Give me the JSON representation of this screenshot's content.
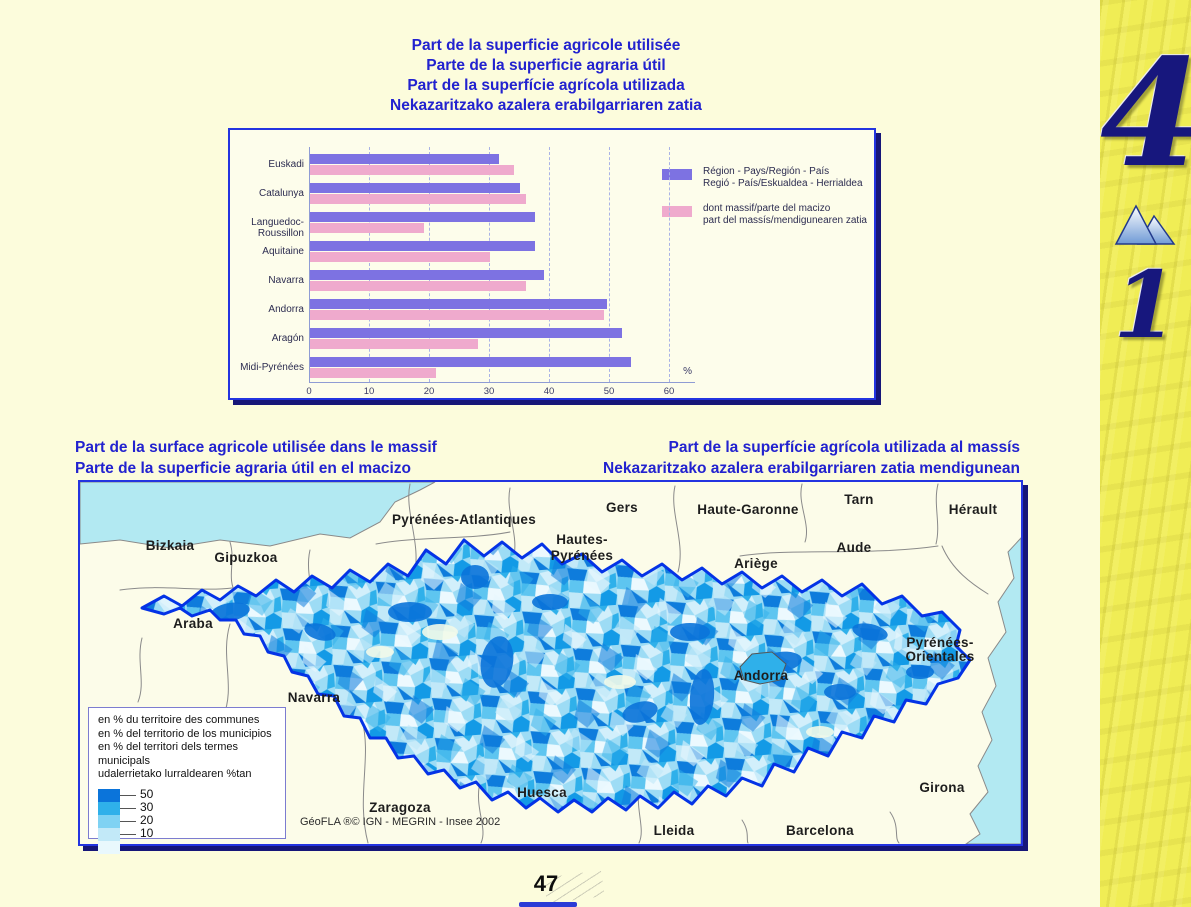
{
  "page": {
    "title_lines": [
      "Part de la superficie agricole utilisée",
      "Parte de la superficie agraria útil",
      "Part de la superfície agrícola utilizada",
      "Nekazaritzako azalera erabilgarriaren zatia"
    ],
    "page_number": "47"
  },
  "sidebar": {
    "chapter_number": "4",
    "section_number": "1",
    "icon": "mountain-icon"
  },
  "chart_data": {
    "type": "bar",
    "orientation": "horizontal",
    "categories": [
      "Euskadi",
      "Catalunya",
      "Languedoc-Roussillon",
      "Aquitaine",
      "Navarra",
      "Andorra",
      "Aragón",
      "Midi-Pyrénées"
    ],
    "series": [
      {
        "name": "Région - Pays/Región - País / Regió - País/Eskualdea - Herrialdea",
        "color": "#7d72e2",
        "values": [
          31.5,
          35,
          37.5,
          37.5,
          39,
          49.5,
          52,
          53.5
        ]
      },
      {
        "name": "dont massif/parte del macizo / part del massís/mendigunearen zatia",
        "color": "#efaacd",
        "values": [
          34,
          36,
          19,
          30,
          36,
          49,
          28,
          21
        ]
      }
    ],
    "legend": [
      {
        "line1": "Région - Pays/Región - País",
        "line2": "Regió - País/Eskualdea - Herrialdea"
      },
      {
        "line1": "dont massif/parte del macizo",
        "line2": "part del massís/mendigunearen zatia"
      }
    ],
    "xlabel": "%",
    "xlim": [
      0,
      60
    ],
    "xticks": [
      0,
      10,
      20,
      30,
      40,
      50,
      60
    ],
    "grid": "dashed vertical",
    "legend_position": "right"
  },
  "map_section": {
    "heading_left": {
      "line1": "Part de la surface agricole utilisée dans le massif",
      "line2": "Parte de la superficie agraria útil en el macizo"
    },
    "heading_right": {
      "line1": "Part de la superfície agrícola utilizada al massís",
      "line2": "Nekazaritzako azalera erabilgarriaren zatia mendigunean"
    },
    "legend": {
      "lines": [
        "en % du territoire des communes",
        "en % del territorio de los municipios",
        "en % del territori dels termes municipals",
        "udalerrietako lurraldearen %tan"
      ],
      "classes": [
        {
          "label": "50",
          "color": "#0b74da"
        },
        {
          "label": "30",
          "color": "#2fb0ea"
        },
        {
          "label": "20",
          "color": "#7fd2f3"
        },
        {
          "label": "10",
          "color": "#c2e9f8"
        },
        {
          "label": "",
          "color": "#e9f8fd"
        }
      ]
    },
    "labels": {
      "bizkaia": "Bizkaia",
      "gipuzkoa": "Gipuzkoa",
      "araba": "Araba",
      "navarra": "Navarra",
      "pyrenees_atlantiques": "Pyrénées-Atlantiques",
      "hautes_pyrenees": [
        "Hautes-",
        "Pyrénées"
      ],
      "gers": "Gers",
      "haute_garonne": "Haute-Garonne",
      "tarn": "Tarn",
      "herault": "Hérault",
      "aude": "Aude",
      "ariege": "Ariège",
      "pyrenees_orientales": [
        "Pyrénées-",
        "Orientales"
      ],
      "andorra": "Andorra",
      "girona": "Girona",
      "barcelona": "Barcelona",
      "lleida": "Lleida",
      "huesca": "Huesca",
      "zaragoza": "Zaragoza"
    },
    "credit": "GéoFLA ®© IGN - MEGRIN - Insee 2002",
    "colors": {
      "sea": "#b2e9f2",
      "land": "#fcfce9",
      "massif_outline": "#0433e6"
    }
  }
}
